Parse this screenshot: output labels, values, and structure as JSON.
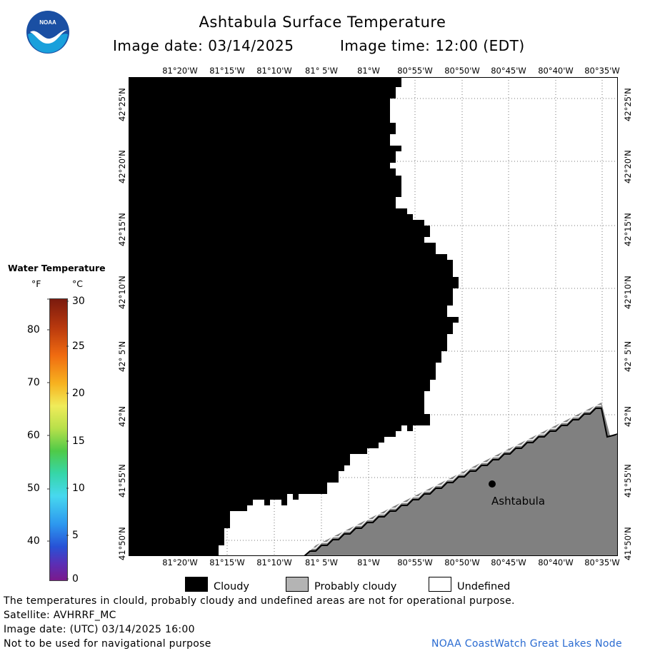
{
  "header": {
    "title": "Ashtabula Surface Temperature",
    "image_date": "Image date: 03/14/2025",
    "image_time": "Image time: 12:00 (EDT)"
  },
  "logo": {
    "text": "NOAA",
    "colors": {
      "outer": "#1a4fa3",
      "inner": "#19a0dc",
      "bird": "#ffffff"
    }
  },
  "map": {
    "lon_labels": [
      "81°20'W",
      "81°15'W",
      "81°10'W",
      "81° 5'W",
      "81°W",
      "80°55'W",
      "80°50'W",
      "80°45'W",
      "80°40'W",
      "80°35'W"
    ],
    "lat_labels": [
      "42°25'N",
      "42°20'N",
      "42°15'N",
      "42°10'N",
      "42° 5'N",
      "42°N",
      "41°55'N",
      "41°50'N"
    ],
    "city": "Ashtabula",
    "colors": {
      "cloud": "#000000",
      "land": "#808080",
      "undefined": "#ffffff",
      "grid": "#777777"
    }
  },
  "legend": {
    "title": "Water Temperature",
    "unit_f": "°F",
    "unit_c": "°C",
    "f_ticks": [
      "80",
      "70",
      "60",
      "50",
      "40"
    ],
    "c_ticks": [
      "30",
      "25",
      "20",
      "15",
      "10",
      "5",
      "0"
    ]
  },
  "key": {
    "cloudy": "Cloudy",
    "probably_cloudy": "Probably cloudy",
    "undefined": "Undefined",
    "colors": {
      "cloudy": "#000000",
      "probably_cloudy": "#b4b4b4",
      "undefined": "#ffffff"
    }
  },
  "footer": {
    "line1": "The temperatures in clould, probably cloudy and undefined areas are not for operational purpose.",
    "line2": "Satellite: AVHRRF_MC",
    "line3": "Image date: (UTC) 03/14/2025  16:00",
    "line4": "Not to be used for navigational purpose",
    "credit": "NOAA CoastWatch Great Lakes Node"
  }
}
